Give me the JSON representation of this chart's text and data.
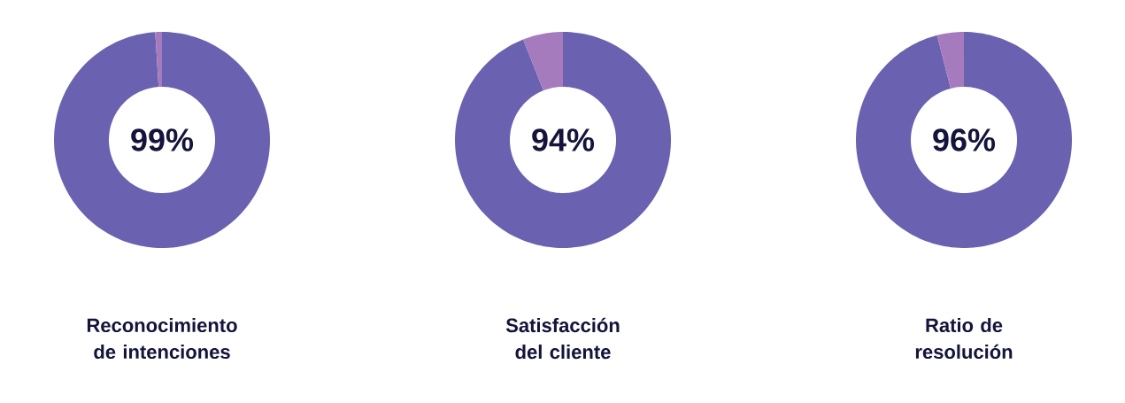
{
  "chart_data": [
    {
      "type": "donut",
      "title": "Reconocimiento de intenciones",
      "categories": [
        null,
        null
      ],
      "values": [
        99,
        1
      ],
      "colors": [
        "#6a61b0",
        "#a67bbd"
      ],
      "annotations": [
        "99%"
      ]
    },
    {
      "type": "donut",
      "title": "Satisfacción del cliente",
      "categories": [
        null,
        null
      ],
      "values": [
        94,
        6
      ],
      "colors": [
        "#6a61b0",
        "#a67bbd"
      ],
      "annotations": [
        "94%"
      ]
    },
    {
      "type": "donut",
      "title": "Ratio de resolución",
      "categories": [
        null,
        null
      ],
      "values": [
        96,
        4
      ],
      "colors": [
        "#6a61b0",
        "#a67bbd"
      ],
      "annotations": [
        "96%"
      ]
    }
  ]
}
